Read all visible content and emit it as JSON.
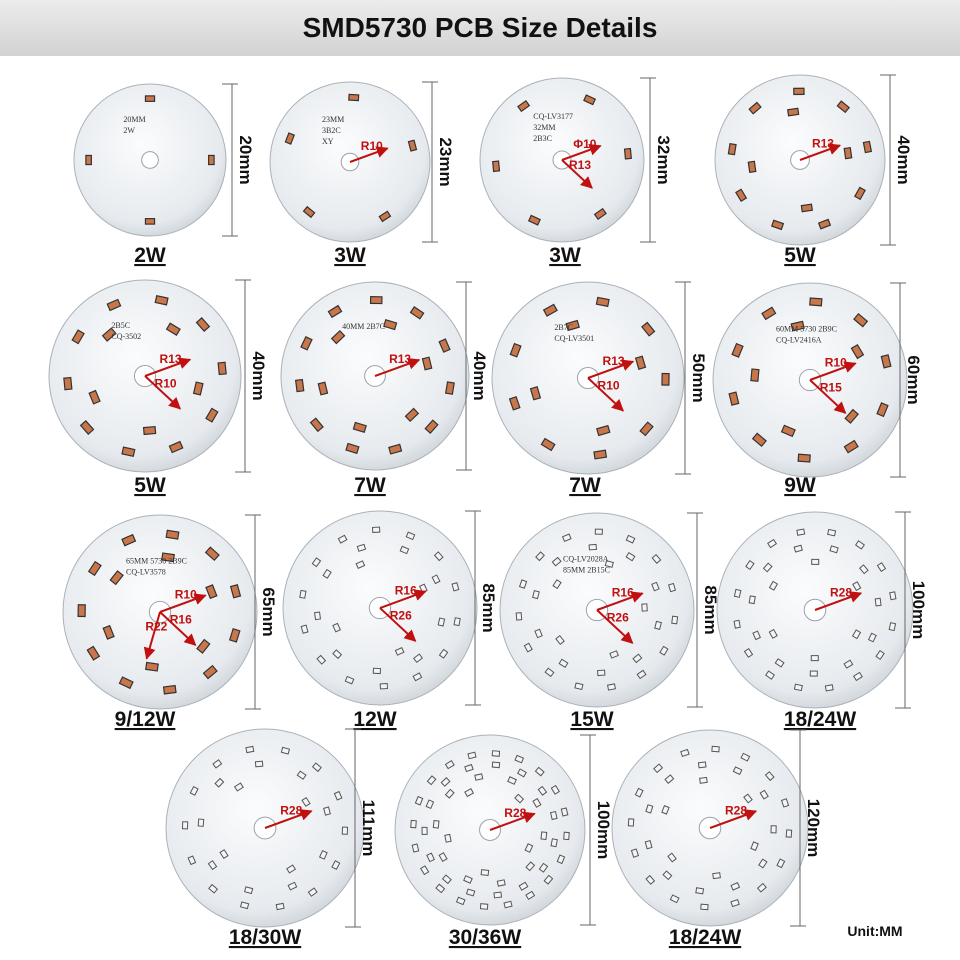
{
  "header": {
    "title": "SMD5730 PCB Size Details"
  },
  "boards": [
    {
      "watt": "2W",
      "size": "20mm",
      "annotations": [],
      "markings": [
        "20MM",
        "2W"
      ]
    },
    {
      "watt": "3W",
      "size": "23mm",
      "annotations": [
        "R10"
      ],
      "markings": [
        "23MM",
        "3B2C",
        "XY"
      ]
    },
    {
      "watt": "3W",
      "size": "32mm",
      "annotations": [
        "Φ10",
        "R13"
      ],
      "markings": [
        "CQ-LV3177",
        "32MM",
        "2B3C"
      ]
    },
    {
      "watt": "5W",
      "size": "40mm",
      "annotations": [
        "R13"
      ],
      "markings": []
    },
    {
      "watt": "5W",
      "size": "40mm",
      "annotations": [
        "R13",
        "R10"
      ],
      "markings": [
        "2B5C",
        "CQ-3502"
      ]
    },
    {
      "watt": "7W",
      "size": "40mm",
      "annotations": [
        "R13"
      ],
      "markings": [
        "40MM 2B7C"
      ]
    },
    {
      "watt": "7W",
      "size": "50mm",
      "annotations": [
        "R13",
        "R10"
      ],
      "markings": [
        "2B7C",
        "CQ-LV3501"
      ]
    },
    {
      "watt": "9W",
      "size": "60mm",
      "annotations": [
        "R10",
        "R15"
      ],
      "markings": [
        "60MM 5730 2B9C",
        "CQ-LV2416A"
      ]
    },
    {
      "watt": "9/12W",
      "size": "65mm",
      "annotations": [
        "R10",
        "R16",
        "R22"
      ],
      "markings": [
        "65MM 5730 2B9C",
        "CQ-LV3578"
      ]
    },
    {
      "watt": "12W",
      "size": "85mm",
      "annotations": [
        "R16",
        "R26"
      ],
      "markings": []
    },
    {
      "watt": "15W",
      "size": "85mm",
      "annotations": [
        "R16",
        "R26"
      ],
      "markings": [
        "CQ-LV2028A",
        "85MM 2B15C"
      ]
    },
    {
      "watt": "18/24W",
      "size": "100mm",
      "annotations": [
        "R28"
      ],
      "markings": []
    },
    {
      "watt": "18/30W",
      "size": "111mm",
      "annotations": [
        "R28"
      ],
      "markings": []
    },
    {
      "watt": "30/36W",
      "size": "100mm",
      "annotations": [
        "R28"
      ],
      "markings": []
    },
    {
      "watt": "18/24W",
      "size": "120mm",
      "annotations": [
        "R28"
      ],
      "markings": []
    }
  ],
  "unit": "Unit:MM"
}
